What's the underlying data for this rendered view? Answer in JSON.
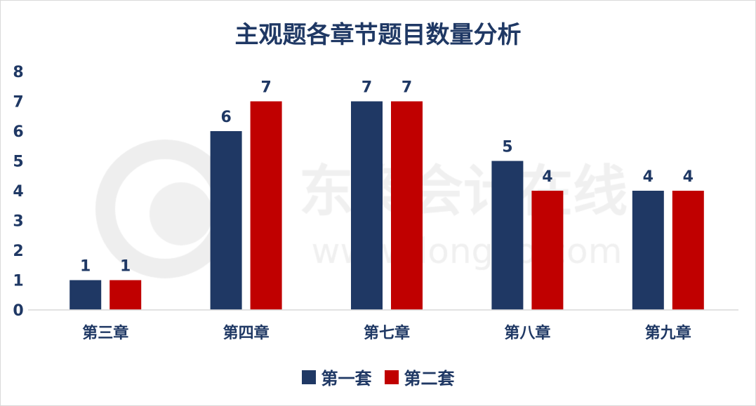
{
  "chart_data": {
    "type": "bar",
    "title": "主观题各章节题目数量分析",
    "categories": [
      "第三章",
      "第四章",
      "第七章",
      "第八章",
      "第九章"
    ],
    "series": [
      {
        "name": "第一套",
        "values": [
          1,
          6,
          7,
          5,
          4
        ],
        "color": "#1f3864"
      },
      {
        "name": "第二套",
        "values": [
          1,
          7,
          7,
          4,
          4
        ],
        "color": "#c00000"
      }
    ],
    "ylim": [
      0,
      8
    ],
    "yticks": [
      0,
      1,
      2,
      3,
      4,
      5,
      6,
      7,
      8
    ],
    "grid": false,
    "legend_position": "bottom",
    "data_labels": true
  },
  "watermark": {
    "text": "东奥会计在线",
    "url_text": "www.dongao.com"
  }
}
